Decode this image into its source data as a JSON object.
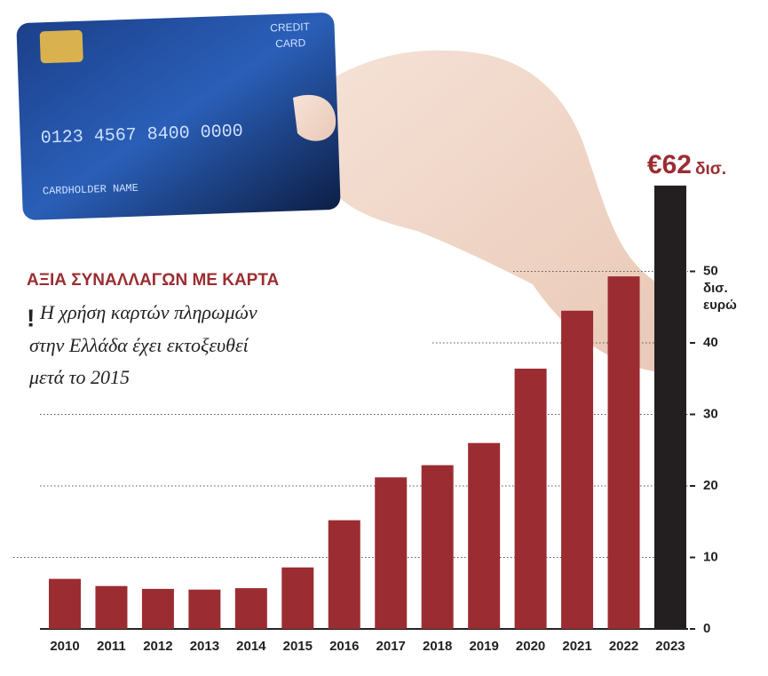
{
  "chart_data": {
    "type": "bar",
    "title": "ΑΞΙΑ ΣΥΝΑΛΛΑΓΩΝ ΜΕ ΚΑΡΤΑ",
    "icon": "!",
    "subtitle": [
      "Η χρήση καρτών πληρωμών",
      "στην Ελλάδα έχει εκτοξευθεί",
      "μετά το 2015"
    ],
    "ylabel": [
      "δισ.",
      "ευρώ"
    ],
    "categories": [
      "2010",
      "2011",
      "2012",
      "2013",
      "2014",
      "2015",
      "2016",
      "2017",
      "2018",
      "2019",
      "2020",
      "2021",
      "2022",
      "2023"
    ],
    "values": [
      7.0,
      6.0,
      5.6,
      5.5,
      5.7,
      8.6,
      15.2,
      21.2,
      22.9,
      26.0,
      36.4,
      44.5,
      49.3,
      62
    ],
    "value_labels": [
      null,
      null,
      null,
      null,
      null,
      null,
      null,
      null,
      null,
      null,
      null,
      null,
      null,
      "€62"
    ],
    "value_label_unit": "δισ.",
    "colors": [
      "#9b2d32",
      "#9b2d32",
      "#9b2d32",
      "#9b2d32",
      "#9b2d32",
      "#9b2d32",
      "#9b2d32",
      "#9b2d32",
      "#9b2d32",
      "#9b2d32",
      "#9b2d32",
      "#9b2d32",
      "#9b2d32",
      "#231f20"
    ],
    "ylim": [
      0,
      65
    ],
    "yticks": [
      0,
      10,
      20,
      30,
      40,
      50
    ],
    "grid": true,
    "card_text": [
      "CREDIT",
      "CARD",
      "0123 4567 8400 0000",
      "CARDHOLDER NAME"
    ]
  }
}
